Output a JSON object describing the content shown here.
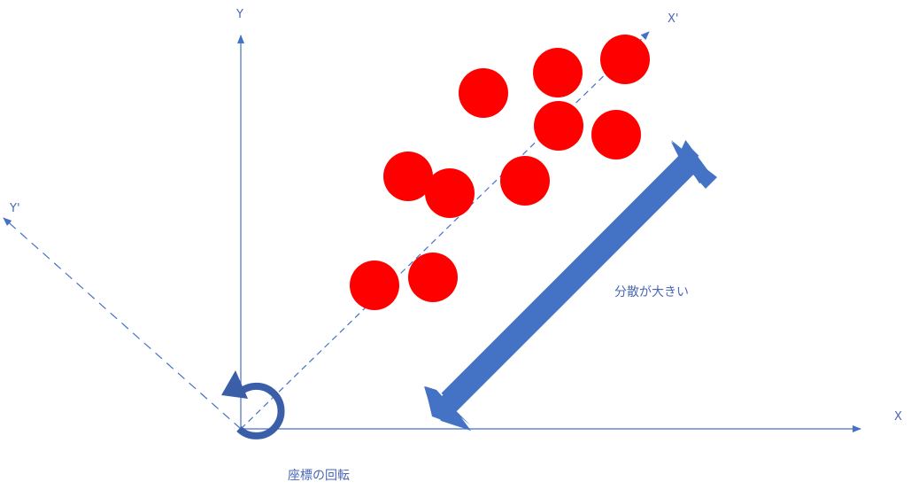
{
  "axes": {
    "x_label": "X",
    "y_label": "Y",
    "x_prime_label": "X'",
    "y_prime_label": "Y'"
  },
  "annotations": {
    "variance_label": "分散が大きい",
    "rotation_label": "座標の回転"
  },
  "colors": {
    "axis": "#4472c4",
    "dots": "#ff0000",
    "arrow": "#4472c4",
    "rotation_icon": "#3b5ea8"
  },
  "icons": {
    "rotation": "rotate-ccw-icon",
    "variance_arrow": "double-arrow-icon"
  }
}
